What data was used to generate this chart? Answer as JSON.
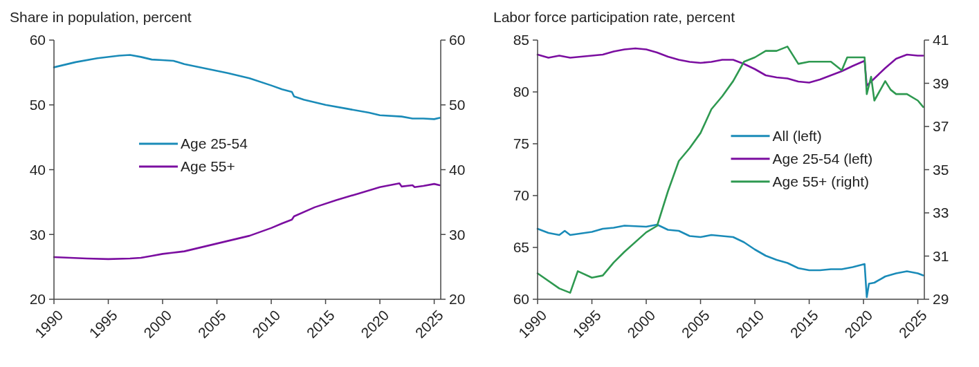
{
  "chart_data": [
    {
      "type": "line",
      "title": "Share in population, percent",
      "xlim": [
        1990,
        2025.6
      ],
      "xticks": [
        1990,
        1995,
        2000,
        2005,
        2010,
        2015,
        2020,
        2025
      ],
      "ylim": [
        20,
        60
      ],
      "yticks": [
        20,
        30,
        40,
        50,
        60
      ],
      "y2lim": [
        20,
        60
      ],
      "y2ticks": [
        20,
        30,
        40,
        50,
        60
      ],
      "legend": "center",
      "grid": false,
      "series": [
        {
          "name": "Age 25-54",
          "color": "#1a8bb8",
          "x": [
            1990,
            1992,
            1994,
            1996,
            1997,
            1998,
            1999,
            2000,
            2001,
            2002,
            2004,
            2006,
            2008,
            2010,
            2011,
            2011.9,
            2012.1,
            2013,
            2015,
            2017,
            2019,
            2020,
            2022,
            2023,
            2024,
            2025,
            2025.5
          ],
          "values": [
            55.8,
            56.6,
            57.2,
            57.6,
            57.7,
            57.4,
            57.0,
            56.9,
            56.8,
            56.3,
            55.6,
            54.9,
            54.1,
            53.0,
            52.4,
            52.0,
            51.3,
            50.8,
            50.0,
            49.4,
            48.8,
            48.4,
            48.2,
            47.9,
            47.9,
            47.8,
            48.0
          ]
        },
        {
          "name": "Age 55+",
          "color": "#7b0ea0",
          "x": [
            1990,
            1993,
            1995,
            1997,
            1998,
            1999,
            2000,
            2001,
            2002,
            2004,
            2006,
            2008,
            2010,
            2011,
            2011.9,
            2012.1,
            2014,
            2016,
            2018,
            2020,
            2021.8,
            2022,
            2023,
            2023.2,
            2024,
            2025,
            2025.5
          ],
          "values": [
            26.5,
            26.3,
            26.2,
            26.3,
            26.4,
            26.7,
            27.0,
            27.2,
            27.4,
            28.2,
            29.0,
            29.8,
            31.0,
            31.7,
            32.3,
            32.8,
            34.2,
            35.3,
            36.3,
            37.3,
            37.9,
            37.4,
            37.6,
            37.3,
            37.5,
            37.8,
            37.6
          ]
        }
      ]
    },
    {
      "type": "line",
      "title": "Labor force participation rate, percent",
      "xlim": [
        1990,
        2025.6
      ],
      "xticks": [
        1990,
        1995,
        2000,
        2005,
        2010,
        2015,
        2020,
        2025
      ],
      "ylim": [
        60,
        85
      ],
      "yticks": [
        60,
        65,
        70,
        75,
        80,
        85
      ],
      "y2lim": [
        29,
        41
      ],
      "y2ticks": [
        29,
        31,
        33,
        35,
        37,
        39,
        41
      ],
      "legend": "center right",
      "grid": false,
      "series": [
        {
          "name": "All (left)",
          "color": "#1a8bb8",
          "x": [
            1990,
            1991,
            1992,
            1992.5,
            1993,
            1995,
            1996,
            1997,
            1998,
            2000,
            2001,
            2002,
            2003,
            2004,
            2005,
            2006,
            2007,
            2008,
            2009,
            2010,
            2011,
            2012,
            2013,
            2014,
            2015,
            2016,
            2017,
            2018,
            2019,
            2020.1,
            2020.3,
            2020.5,
            2021,
            2022,
            2023,
            2024,
            2025,
            2025.5
          ],
          "values": [
            66.8,
            66.4,
            66.2,
            66.6,
            66.2,
            66.5,
            66.8,
            66.9,
            67.1,
            67.0,
            67.2,
            66.7,
            66.6,
            66.1,
            66.0,
            66.2,
            66.1,
            66.0,
            65.5,
            64.8,
            64.2,
            63.8,
            63.5,
            63.0,
            62.8,
            62.8,
            62.9,
            62.9,
            63.1,
            63.4,
            60.2,
            61.5,
            61.6,
            62.2,
            62.5,
            62.7,
            62.5,
            62.3
          ]
        },
        {
          "name": "Age 25-54 (left)",
          "color": "#7b0ea0",
          "x": [
            1990,
            1991,
            1992,
            1993,
            1994,
            1995,
            1996,
            1997,
            1998,
            1999,
            2000,
            2001,
            2002,
            2003,
            2004,
            2005,
            2006,
            2007,
            2008,
            2009,
            2010,
            2011,
            2012,
            2013,
            2014,
            2015,
            2016,
            2017,
            2018,
            2019,
            2020.1,
            2020.3,
            2021,
            2022,
            2023,
            2024,
            2025,
            2025.5
          ],
          "values": [
            83.6,
            83.3,
            83.5,
            83.3,
            83.4,
            83.5,
            83.6,
            83.9,
            84.1,
            84.2,
            84.1,
            83.8,
            83.4,
            83.1,
            82.9,
            82.8,
            82.9,
            83.1,
            83.1,
            82.7,
            82.2,
            81.6,
            81.4,
            81.3,
            81.0,
            80.9,
            81.2,
            81.6,
            82.0,
            82.5,
            83.0,
            80.6,
            81.3,
            82.3,
            83.2,
            83.6,
            83.5,
            83.5
          ]
        },
        {
          "name": "Age 55+ (right)",
          "color": "#2e9950",
          "axis": "y2",
          "x": [
            1990,
            1992,
            1993,
            1993.7,
            1995,
            1996,
            1997,
            1998,
            2000,
            2001,
            2002,
            2003,
            2004,
            2005,
            2006,
            2007,
            2008,
            2009,
            2010,
            2011,
            2012,
            2013,
            2014,
            2015,
            2016,
            2017,
            2018,
            2018.5,
            2019,
            2020.1,
            2020.3,
            2020.7,
            2021,
            2022,
            2022.5,
            2023,
            2024,
            2025,
            2025.5
          ],
          "values": [
            30.2,
            29.5,
            29.3,
            30.3,
            30.0,
            30.1,
            30.7,
            31.2,
            32.1,
            32.4,
            34.0,
            35.4,
            36.0,
            36.7,
            37.8,
            38.4,
            39.1,
            40.0,
            40.2,
            40.5,
            40.5,
            40.7,
            39.9,
            40.0,
            40.0,
            40.0,
            39.6,
            40.2,
            40.2,
            40.2,
            38.5,
            39.3,
            38.2,
            39.1,
            38.7,
            38.5,
            38.5,
            38.2,
            37.9
          ]
        }
      ]
    }
  ]
}
